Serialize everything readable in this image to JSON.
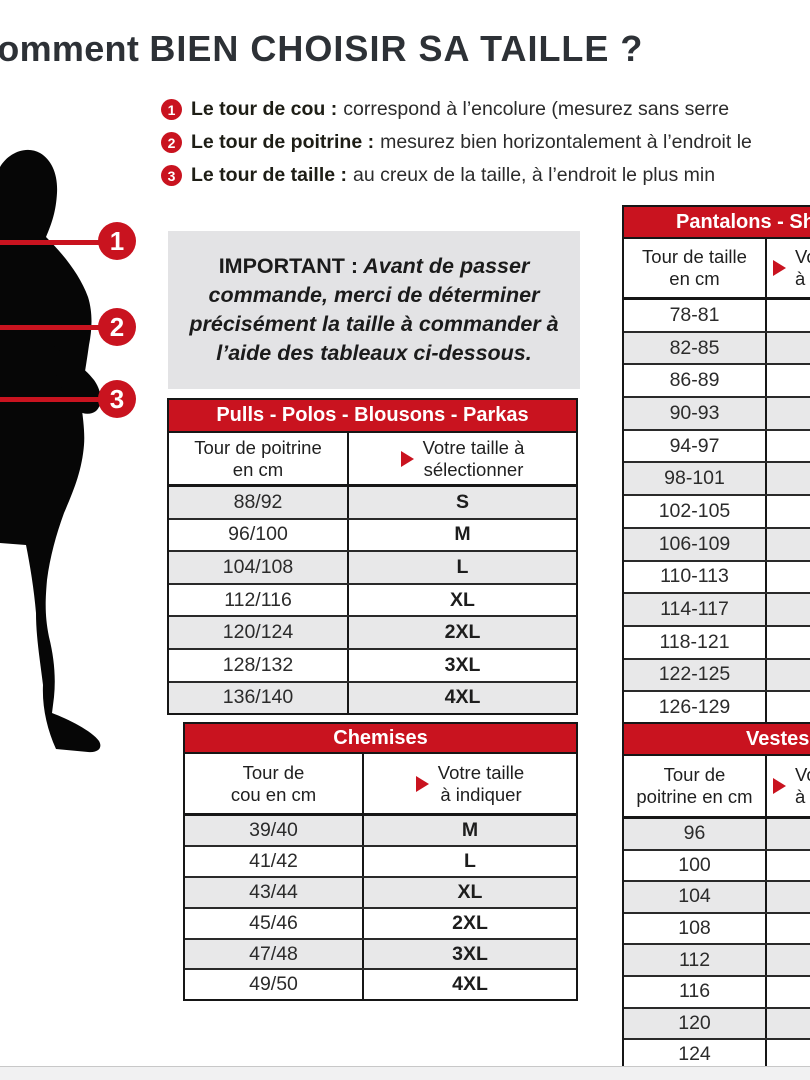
{
  "colors": {
    "accent_red": "#c9131f",
    "row_gray": "#e8e8e9",
    "note_gray": "#e3e3e5",
    "text_dark": "#222222"
  },
  "page": {
    "title_prefix": "Comment",
    "title_main": "BIEN CHOISIR SA TAILLE ?"
  },
  "instructions": [
    {
      "num": "1",
      "label": "Le tour de cou :",
      "text": "correspond à l’encolure (mesurez sans serre"
    },
    {
      "num": "2",
      "label": "Le tour de poitrine :",
      "text": "mesurez bien horizontalement à l’endroit le"
    },
    {
      "num": "3",
      "label": "Le tour de taille :",
      "text": "au creux de la taille, à l’endroit le plus min"
    }
  ],
  "figure": {
    "marker1": "1",
    "marker2": "2",
    "marker3": "3"
  },
  "important": {
    "label": "IMPORTANT :",
    "text": " Avant de passer commande, merci de déterminer précisément la taille à commander à l’aide des tableaux ci-dessous."
  },
  "tables": {
    "pulls": {
      "title": "Pulls - Polos - Blousons - Parkas",
      "col1_line1": "Tour de poitrine",
      "col1_line2": "en cm",
      "col2_line1": "Votre taille à",
      "col2_line2": "sélectionner",
      "rows": [
        [
          "88/92",
          "S"
        ],
        [
          "96/100",
          "M"
        ],
        [
          "104/108",
          "L"
        ],
        [
          "112/116",
          "XL"
        ],
        [
          "120/124",
          "2XL"
        ],
        [
          "128/132",
          "3XL"
        ],
        [
          "136/140",
          "4XL"
        ]
      ]
    },
    "chemises": {
      "title": "Chemises",
      "col1_line1": "Tour de",
      "col1_line2": "cou en cm",
      "col2_line1": "Votre taille",
      "col2_line2": "à indiquer",
      "rows": [
        [
          "39/40",
          "M"
        ],
        [
          "41/42",
          "L"
        ],
        [
          "43/44",
          "XL"
        ],
        [
          "45/46",
          "2XL"
        ],
        [
          "47/48",
          "3XL"
        ],
        [
          "49/50",
          "4XL"
        ]
      ]
    },
    "pantalons": {
      "title": "Pantalons - Sh",
      "col1_line1": "Tour de taille",
      "col1_line2": "en cm",
      "col2_line1": "Vo",
      "col2_line2": "à",
      "rows": [
        [
          "78-81",
          ""
        ],
        [
          "82-85",
          ""
        ],
        [
          "86-89",
          ""
        ],
        [
          "90-93",
          ""
        ],
        [
          "94-97",
          ""
        ],
        [
          "98-101",
          ""
        ],
        [
          "102-105",
          ""
        ],
        [
          "106-109",
          ""
        ],
        [
          "110-113",
          ""
        ],
        [
          "114-117",
          ""
        ],
        [
          "118-121",
          ""
        ],
        [
          "122-125",
          ""
        ],
        [
          "126-129",
          ""
        ]
      ]
    },
    "vestes": {
      "title": "Vestes",
      "col1_line1": "Tour de",
      "col1_line2": "poitrine en cm",
      "col2_line1": "Vot",
      "col2_line2": "à i",
      "rows": [
        [
          "96",
          ""
        ],
        [
          "100",
          ""
        ],
        [
          "104",
          ""
        ],
        [
          "108",
          ""
        ],
        [
          "112",
          ""
        ],
        [
          "116",
          ""
        ],
        [
          "120",
          ""
        ],
        [
          "124",
          ""
        ]
      ]
    }
  }
}
